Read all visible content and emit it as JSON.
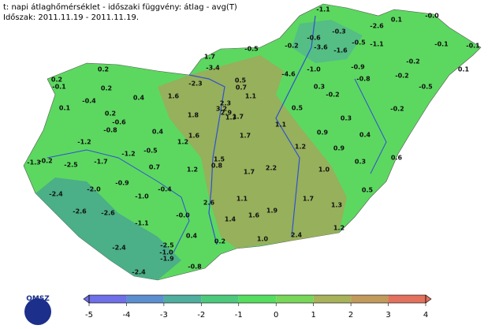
{
  "header": {
    "line1": "t: napi átlaghőmérséklet - időszaki függvény: átlag - avg(T)",
    "line2": "Időszak: 2011.11.19 - 2011.11.19."
  },
  "logo": "OMSZ",
  "map": {
    "labels": [
      "-1.1",
      "0.1",
      "-0.0",
      "-2.6",
      "-0.3",
      "-0.6",
      "-0.2",
      "-3.6",
      "-1.6",
      "-0.5",
      "-1.1",
      "-0.1",
      "-0.1",
      "-0.2",
      "0.1",
      "-0.9",
      "-4.6",
      "-1.0",
      "-0.8",
      "-0.2",
      "-0.5",
      "-0.5",
      "1.7",
      "-3.4",
      "0.2",
      "-0.1",
      "0.2",
      "0.2",
      "-2.3",
      "0.5",
      "0.7",
      "0.3",
      "-0.2",
      "0.4",
      "1.6",
      "1.1",
      "2.3",
      "3.2",
      "2.9",
      "1.3",
      "1.7",
      "-0.4",
      "0.1",
      "0.2",
      "1.8",
      "0.5",
      "-0.2",
      "-0.6",
      "0.4",
      "-0.8",
      "1.1",
      "0.3",
      "1.6",
      "0.4",
      "1.2",
      "1.7",
      "-1.2",
      "0.9",
      "-0.5",
      "-1.2",
      "1.2",
      "0.9",
      "-1.3",
      "-0.2",
      "-2.5",
      "-1.7",
      "0.7",
      "1.5",
      "0.8",
      "0.6",
      "1.7",
      "2.2",
      "0.3",
      "1.0",
      "1.2",
      "-2.0",
      "-0.9",
      "-2.4",
      "-1.0",
      "-0.4",
      "1.1",
      "1.7",
      "0.5",
      "-2.6",
      "-2.6",
      "2.6",
      "-0.0",
      "1.4",
      "1.6",
      "1.9",
      "1.3",
      "-1.1",
      "1.2",
      "0.4",
      "1.0",
      "2.4",
      "0.2",
      "-2.5",
      "-1.0",
      "-1.9",
      "-2.4",
      "-0.8",
      "-2.4"
    ]
  },
  "colorbar": {
    "ticks": [
      -5,
      -4,
      -3,
      -2,
      -1,
      0,
      1,
      2,
      3,
      4
    ],
    "colors": [
      "#6f6fe8",
      "#5c8fd0",
      "#4fae9e",
      "#4cc97c",
      "#55dd5e",
      "#78d658",
      "#a8b25a",
      "#c29a5c",
      "#e2725e"
    ]
  }
}
